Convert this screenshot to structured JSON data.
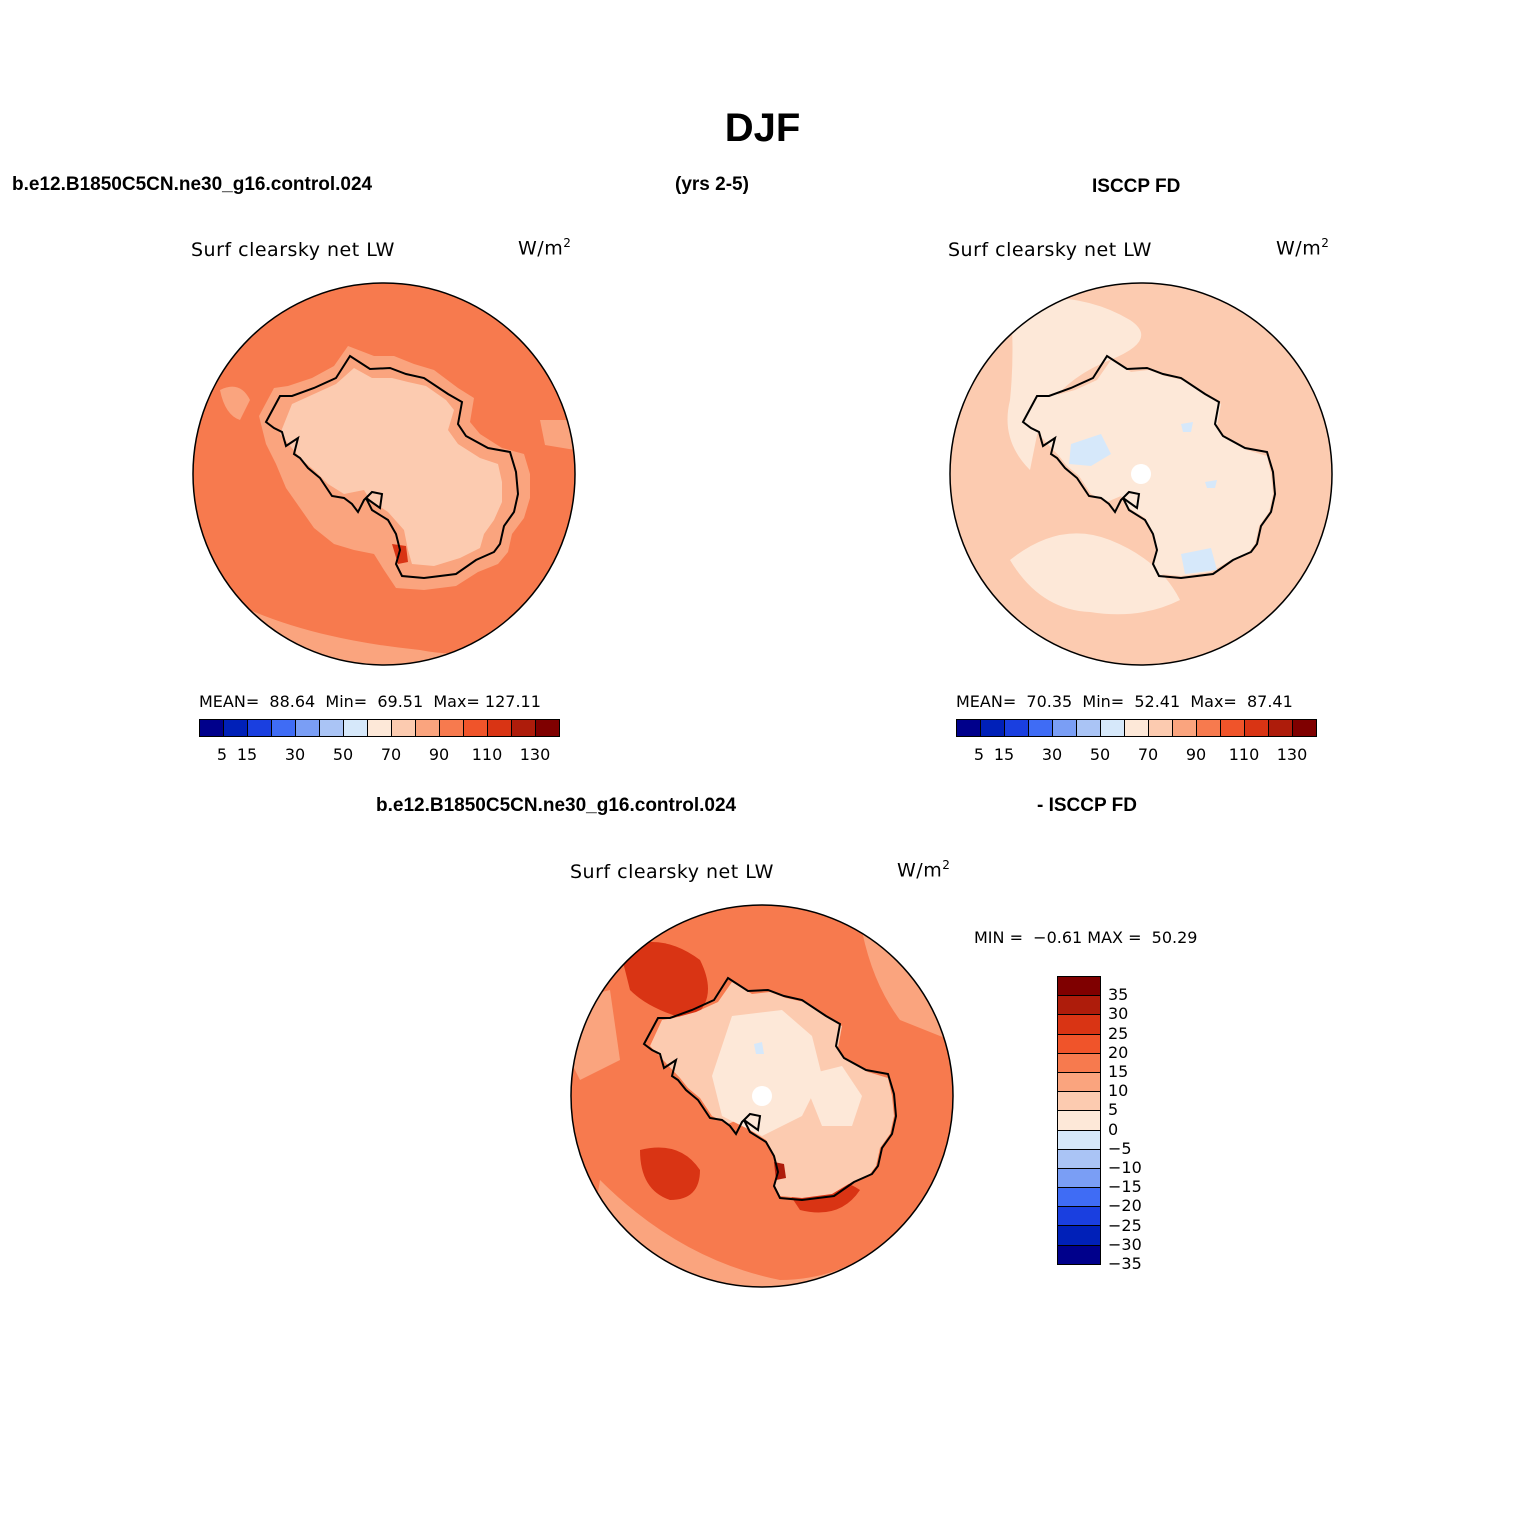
{
  "main_title": "DJF",
  "header": {
    "case": "b.e12.B1850C5CN.ne30_g16.control.024",
    "years": "(yrs 2-5)",
    "obs": "ISCCP FD"
  },
  "panel_left": {
    "variable": "Surf clearsky net LW",
    "units": "W/m",
    "units_exp": "2",
    "stats": "MEAN=  88.64  Min=  69.51  Max= 127.11",
    "colorbar_ticks": [
      "5",
      "15",
      "30",
      "50",
      "70",
      "90",
      "110",
      "130"
    ]
  },
  "panel_right": {
    "variable": "Surf clearsky net LW",
    "units": "W/m",
    "units_exp": "2",
    "stats": "MEAN=  70.35  Min=  52.41  Max=  87.41",
    "colorbar_ticks": [
      "5",
      "15",
      "30",
      "50",
      "70",
      "90",
      "110",
      "130"
    ]
  },
  "diff_header": {
    "case": "b.e12.B1850C5CN.ne30_g16.control.024",
    "obs": "- ISCCP FD"
  },
  "panel_diff": {
    "variable": "Surf clearsky net LW",
    "units": "W/m",
    "units_exp": "2",
    "stats": "MIN =  −0.61 MAX =  50.29",
    "colorbar_ticks": [
      "35",
      "30",
      "25",
      "20",
      "15",
      "10",
      "5",
      "0",
      "−5",
      "−10",
      "−15",
      "−20",
      "−25",
      "−30",
      "−35"
    ]
  },
  "colors": {
    "abs_scale": [
      "#00008b",
      "#0020b8",
      "#1a3fe0",
      "#3f6cf5",
      "#7a9ef5",
      "#aac4f5",
      "#d6e8fa",
      "#fde8d8",
      "#fccbb0",
      "#faa47e",
      "#f77a4e",
      "#f0542a",
      "#d93414",
      "#ae1c0b",
      "#7f0000"
    ],
    "diff_scale": [
      "#7f0000",
      "#ae1c0b",
      "#d93414",
      "#f0542a",
      "#f77a4e",
      "#faa47e",
      "#fccbb0",
      "#fde8d8",
      "#d6e8fa",
      "#aac4f5",
      "#7a9ef5",
      "#3f6cf5",
      "#1a3fe0",
      "#0020b8",
      "#00008b"
    ]
  }
}
